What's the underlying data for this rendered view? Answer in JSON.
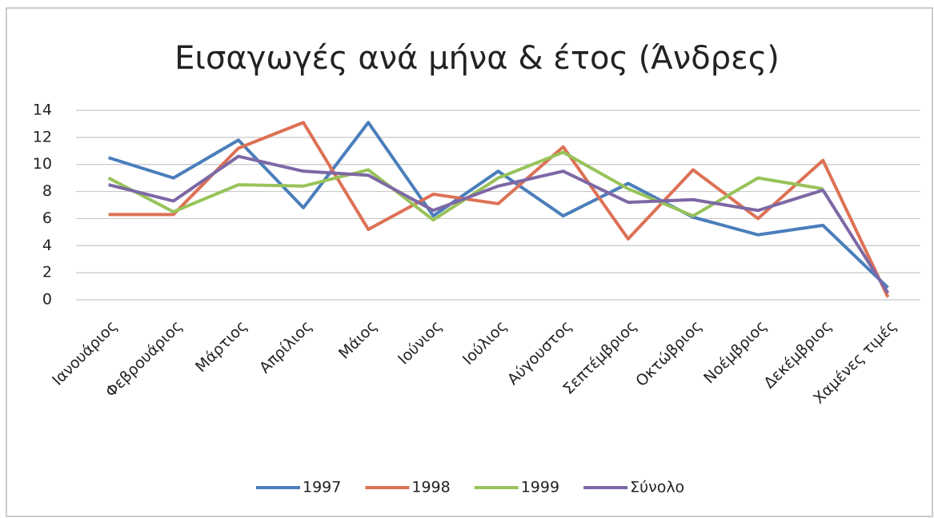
{
  "chart_data": {
    "type": "line",
    "title": "Εισαγωγές ανά μήνα & έτος (Άνδρες)",
    "categories": [
      "Ιανουάριος",
      "Φεβρουάριος",
      "Μάρτιος",
      "Απρίλιος",
      "Μάιος",
      "Ιούνιος",
      "Ιούλιος",
      "Αύγουστος",
      "Σεπτέμβριος",
      "Οκτώβριος",
      "Νοέμβριος",
      "Δεκέμβριος",
      "Χαμένες τιμές"
    ],
    "series": [
      {
        "name": "1997",
        "color": "#4a7ebb",
        "values": [
          10.5,
          9.0,
          11.8,
          6.8,
          13.1,
          6.2,
          9.5,
          6.2,
          8.6,
          6.1,
          4.8,
          5.5,
          0.9
        ]
      },
      {
        "name": "1998",
        "color": "#dd7155",
        "values": [
          6.3,
          6.3,
          11.2,
          13.1,
          5.2,
          7.8,
          7.1,
          11.3,
          4.5,
          9.6,
          6.0,
          10.3,
          0.2
        ]
      },
      {
        "name": "1999",
        "color": "#98c35a",
        "values": [
          9.0,
          6.5,
          8.5,
          8.4,
          9.6,
          5.9,
          9.0,
          10.9,
          8.2,
          6.2,
          9.0,
          8.2,
          null
        ]
      },
      {
        "name": "Σύνολο",
        "color": "#7d68a5",
        "values": [
          8.5,
          7.3,
          10.6,
          9.5,
          9.2,
          6.6,
          8.4,
          9.5,
          7.2,
          7.4,
          6.6,
          8.1,
          0.5
        ]
      }
    ],
    "ylim": [
      0,
      14
    ],
    "yticks": [
      0,
      2,
      4,
      6,
      8,
      10,
      12,
      14
    ],
    "grid": true,
    "legend": "bottom"
  }
}
